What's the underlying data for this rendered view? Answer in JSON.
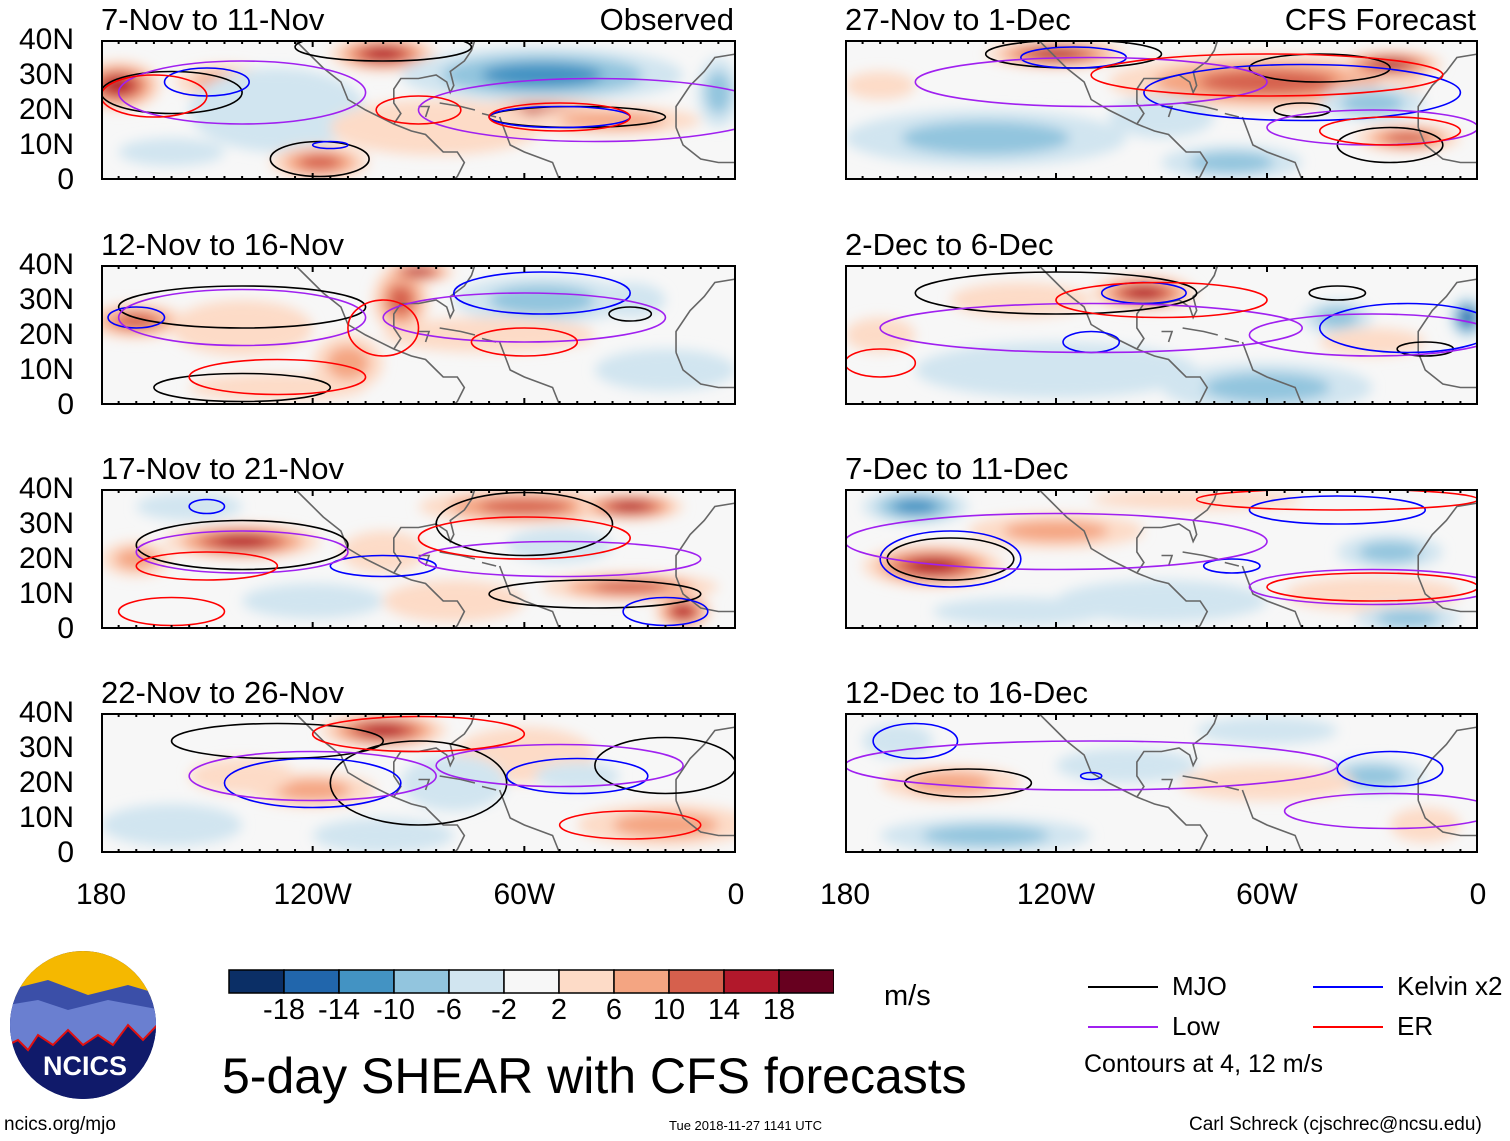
{
  "chart_data": {
    "type": "heatmap",
    "title": "5-day SHEAR with CFS forecasts",
    "units": "m/s",
    "column_labels": [
      "Observed",
      "CFS Forecast"
    ],
    "y_ticks": [
      "40N",
      "30N",
      "20N",
      "10N",
      "0"
    ],
    "x_ticks": [
      "180",
      "120W",
      "60W",
      "0"
    ],
    "lon_range_west": [
      180,
      0
    ],
    "lat_range": [
      0,
      40
    ],
    "colorbar": {
      "levels": [
        "-18",
        "-14",
        "-10",
        "-6",
        "-2",
        "2",
        "6",
        "10",
        "14",
        "18"
      ],
      "colors": [
        "#0b2f66",
        "#2166ac",
        "#4393c3",
        "#92c5de",
        "#d1e5f0",
        "#f7f7f7",
        "#fddbc7",
        "#f4a582",
        "#d6604d",
        "#b2182b",
        "#67001f"
      ]
    },
    "legend": {
      "items": [
        {
          "label": "MJO",
          "color": "#000000"
        },
        {
          "label": "Kelvin x2",
          "color": "#0000ff"
        },
        {
          "label": "Low",
          "color": "#a020f0"
        },
        {
          "label": "ER",
          "color": "#ff0000"
        }
      ],
      "note": "Contours at 4, 12 m/s"
    },
    "panels": [
      {
        "label": "7-Nov to 11-Nov",
        "blobs": [
          [
            175,
            27,
            12,
            7,
            16
          ],
          [
            145,
            28,
            14,
            5,
            10
          ],
          [
            130,
            20,
            25,
            12,
            -4
          ],
          [
            100,
            36,
            15,
            5,
            16
          ],
          [
            55,
            30,
            40,
            8,
            -12
          ],
          [
            55,
            19,
            25,
            4,
            18
          ],
          [
            35,
            17,
            25,
            4,
            10
          ],
          [
            118,
            5,
            14,
            5,
            14
          ],
          [
            160,
            8,
            15,
            4,
            -4
          ],
          [
            85,
            15,
            30,
            8,
            4
          ],
          [
            5,
            25,
            6,
            10,
            -8
          ]
        ],
        "contours": [
          [
            "mjo",
            160,
            25,
            20,
            6
          ],
          [
            "mjo",
            118,
            6,
            14,
            5
          ],
          [
            "mjo",
            45,
            18,
            25,
            3
          ],
          [
            "mjo",
            100,
            38,
            25,
            4
          ],
          [
            "kelvin",
            150,
            28,
            12,
            4
          ],
          [
            "kelvin",
            50,
            18,
            20,
            3
          ],
          [
            "kelvin",
            115,
            10,
            5,
            1
          ],
          [
            "low",
            140,
            25,
            35,
            9
          ],
          [
            "low",
            40,
            20,
            50,
            9
          ],
          [
            "er",
            165,
            24,
            15,
            6
          ],
          [
            "er",
            90,
            20,
            12,
            4
          ],
          [
            "er",
            50,
            18,
            20,
            4
          ]
        ]
      },
      {
        "label": "12-Nov to 16-Nov",
        "blobs": [
          [
            170,
            24,
            14,
            5,
            14
          ],
          [
            140,
            22,
            20,
            8,
            6
          ],
          [
            95,
            30,
            8,
            10,
            14
          ],
          [
            90,
            38,
            10,
            3,
            18
          ],
          [
            55,
            30,
            25,
            7,
            -10
          ],
          [
            30,
            30,
            10,
            5,
            -6
          ],
          [
            70,
            20,
            30,
            5,
            6
          ],
          [
            130,
            5,
            25,
            4,
            6
          ],
          [
            110,
            12,
            10,
            8,
            10
          ],
          [
            20,
            10,
            20,
            6,
            -4
          ]
        ],
        "contours": [
          [
            "mjo",
            140,
            28,
            35,
            6
          ],
          [
            "mjo",
            140,
            5,
            25,
            4
          ],
          [
            "mjo",
            30,
            26,
            6,
            2
          ],
          [
            "kelvin",
            170,
            25,
            8,
            3
          ],
          [
            "kelvin",
            55,
            32,
            25,
            6
          ],
          [
            "low",
            140,
            25,
            35,
            8
          ],
          [
            "low",
            60,
            25,
            40,
            7
          ],
          [
            "er",
            100,
            22,
            10,
            8
          ],
          [
            "er",
            60,
            18,
            15,
            4
          ],
          [
            "er",
            130,
            8,
            25,
            5
          ]
        ]
      },
      {
        "label": "17-Nov to 21-Nov",
        "blobs": [
          [
            140,
            25,
            22,
            5,
            18
          ],
          [
            170,
            20,
            10,
            5,
            10
          ],
          [
            100,
            22,
            12,
            6,
            6
          ],
          [
            60,
            35,
            30,
            5,
            14
          ],
          [
            30,
            35,
            15,
            4,
            16
          ],
          [
            50,
            24,
            15,
            5,
            -6
          ],
          [
            30,
            12,
            25,
            4,
            14
          ],
          [
            15,
            5,
            8,
            5,
            18
          ],
          [
            155,
            35,
            15,
            4,
            -6
          ],
          [
            80,
            8,
            20,
            6,
            6
          ],
          [
            120,
            8,
            20,
            5,
            -4
          ]
        ],
        "contours": [
          [
            "mjo",
            140,
            24,
            30,
            7
          ],
          [
            "mjo",
            40,
            10,
            30,
            4
          ],
          [
            "mjo",
            60,
            30,
            25,
            9
          ],
          [
            "kelvin",
            150,
            35,
            5,
            2
          ],
          [
            "kelvin",
            100,
            18,
            15,
            3
          ],
          [
            "kelvin",
            20,
            5,
            12,
            4
          ],
          [
            "low",
            140,
            22,
            30,
            6
          ],
          [
            "low",
            50,
            20,
            40,
            5
          ],
          [
            "er",
            150,
            18,
            20,
            4
          ],
          [
            "er",
            60,
            26,
            30,
            6
          ],
          [
            "er",
            160,
            5,
            15,
            4
          ]
        ]
      },
      {
        "label": "22-Nov to 26-Nov",
        "blobs": [
          [
            100,
            35,
            18,
            5,
            16
          ],
          [
            120,
            18,
            18,
            5,
            10
          ],
          [
            140,
            22,
            15,
            5,
            6
          ],
          [
            60,
            28,
            20,
            8,
            6
          ],
          [
            45,
            22,
            12,
            4,
            -6
          ],
          [
            20,
            8,
            25,
            6,
            10
          ],
          [
            160,
            8,
            20,
            6,
            -6
          ],
          [
            100,
            5,
            20,
            5,
            -4
          ],
          [
            80,
            20,
            15,
            8,
            -4
          ]
        ],
        "contours": [
          [
            "mjo",
            130,
            32,
            30,
            5
          ],
          [
            "mjo",
            90,
            20,
            25,
            12
          ],
          [
            "mjo",
            20,
            25,
            20,
            8
          ],
          [
            "kelvin",
            120,
            20,
            25,
            7
          ],
          [
            "kelvin",
            45,
            22,
            20,
            5
          ],
          [
            "low",
            120,
            22,
            35,
            7
          ],
          [
            "low",
            50,
            25,
            35,
            6
          ],
          [
            "er",
            90,
            34,
            30,
            5
          ],
          [
            "er",
            30,
            8,
            20,
            4
          ]
        ]
      },
      {
        "label": "27-Nov to 1-Dec",
        "blobs": [
          [
            120,
            36,
            20,
            4,
            18
          ],
          [
            60,
            28,
            45,
            8,
            14
          ],
          [
            25,
            33,
            15,
            4,
            16
          ],
          [
            90,
            18,
            15,
            6,
            -4
          ],
          [
            140,
            12,
            40,
            8,
            -8
          ],
          [
            70,
            5,
            20,
            5,
            -8
          ],
          [
            20,
            12,
            15,
            4,
            14
          ],
          [
            30,
            22,
            15,
            5,
            -8
          ],
          [
            170,
            27,
            10,
            4,
            6
          ]
        ],
        "contours": [
          [
            "mjo",
            115,
            36,
            25,
            4
          ],
          [
            "mjo",
            45,
            32,
            20,
            4
          ],
          [
            "mjo",
            50,
            20,
            8,
            2
          ],
          [
            "mjo",
            25,
            10,
            15,
            5
          ],
          [
            "kelvin",
            115,
            35,
            15,
            3
          ],
          [
            "kelvin",
            50,
            25,
            45,
            8
          ],
          [
            "low",
            110,
            28,
            50,
            7
          ],
          [
            "low",
            30,
            15,
            30,
            5
          ],
          [
            "er",
            60,
            30,
            50,
            6
          ],
          [
            "er",
            25,
            14,
            20,
            4
          ]
        ]
      },
      {
        "label": "2-Dec to 6-Dec",
        "blobs": [
          [
            95,
            32,
            15,
            5,
            18
          ],
          [
            130,
            30,
            20,
            5,
            6
          ],
          [
            40,
            25,
            10,
            5,
            -8
          ],
          [
            3,
            25,
            5,
            6,
            -18
          ],
          [
            60,
            5,
            30,
            7,
            -8
          ],
          [
            120,
            10,
            40,
            8,
            -6
          ],
          [
            30,
            18,
            15,
            4,
            6
          ],
          [
            170,
            20,
            10,
            5,
            6
          ]
        ],
        "contours": [
          [
            "mjo",
            120,
            32,
            40,
            6
          ],
          [
            "mjo",
            40,
            32,
            8,
            2
          ],
          [
            "mjo",
            15,
            16,
            8,
            2
          ],
          [
            "kelvin",
            95,
            32,
            12,
            3
          ],
          [
            "kelvin",
            20,
            22,
            25,
            7
          ],
          [
            "kelvin",
            110,
            18,
            8,
            3
          ],
          [
            "low",
            110,
            22,
            60,
            7
          ],
          [
            "low",
            30,
            20,
            35,
            6
          ],
          [
            "er",
            90,
            30,
            30,
            5
          ],
          [
            "er",
            170,
            12,
            10,
            4
          ]
        ]
      },
      {
        "label": "7-Dec to 11-Dec",
        "blobs": [
          [
            155,
            18,
            20,
            6,
            18
          ],
          [
            120,
            28,
            25,
            5,
            10
          ],
          [
            160,
            35,
            15,
            5,
            -12
          ],
          [
            80,
            37,
            30,
            3,
            6
          ],
          [
            25,
            22,
            15,
            5,
            -10
          ],
          [
            90,
            8,
            30,
            6,
            -4
          ],
          [
            30,
            10,
            25,
            5,
            6
          ],
          [
            130,
            5,
            25,
            4,
            -6
          ],
          [
            20,
            3,
            15,
            4,
            -8
          ]
        ],
        "contours": [
          [
            "mjo",
            150,
            20,
            18,
            6
          ],
          [
            "kelvin",
            150,
            20,
            20,
            8
          ],
          [
            "kelvin",
            70,
            18,
            8,
            2
          ],
          [
            "kelvin",
            40,
            34,
            25,
            4
          ],
          [
            "low",
            120,
            25,
            60,
            8
          ],
          [
            "low",
            30,
            12,
            35,
            5
          ],
          [
            "er",
            40,
            37,
            40,
            3
          ],
          [
            "er",
            30,
            12,
            30,
            4
          ]
        ]
      },
      {
        "label": "12-Dec to 16-Dec",
        "blobs": [
          [
            150,
            20,
            20,
            5,
            8
          ],
          [
            165,
            32,
            10,
            5,
            -6
          ],
          [
            140,
            5,
            30,
            5,
            -8
          ],
          [
            30,
            22,
            15,
            5,
            -10
          ],
          [
            60,
            20,
            25,
            5,
            4
          ],
          [
            15,
            8,
            10,
            5,
            6
          ],
          [
            60,
            35,
            20,
            4,
            -4
          ],
          [
            100,
            25,
            20,
            5,
            -4
          ]
        ],
        "contours": [
          [
            "mjo",
            145,
            20,
            18,
            4
          ],
          [
            "kelvin",
            160,
            32,
            12,
            5
          ],
          [
            "kelvin",
            25,
            24,
            15,
            5
          ],
          [
            "kelvin",
            110,
            22,
            3,
            1
          ],
          [
            "low",
            110,
            25,
            70,
            7
          ],
          [
            "low",
            25,
            12,
            30,
            5
          ]
        ]
      }
    ]
  },
  "footer": {
    "logo_text": "NCICS",
    "url": "ncics.org/mjo",
    "timestamp": "Tue 2018-11-27 1141 UTC",
    "author": "Carl Schreck (cjschrec@ncsu.edu)"
  }
}
